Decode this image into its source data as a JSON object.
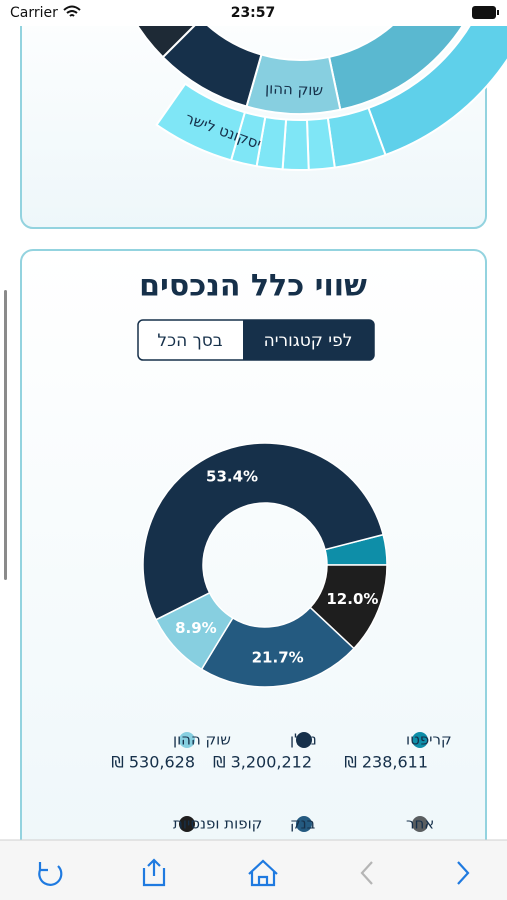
{
  "status_bar": {
    "carrier": "Carrier",
    "time": "23:57"
  },
  "top_card": {
    "labels": [
      "שוק ההון",
      "יסקונט לישר"
    ]
  },
  "assets_card": {
    "title": "שווי כלל הנכסים",
    "toggle": [
      "לפי קטגוריה",
      "בסך הכל"
    ],
    "legend": [
      {
        "name": "קריפטו",
        "color": "#0e8ea8",
        "value": "₪ 238,611"
      },
      {
        "name": "נדלן",
        "color": "#16304a",
        "value": "₪ 3,200,212"
      },
      {
        "name": "שוק ההון",
        "color": "#87cfe0",
        "value": "₪ 530,628"
      },
      {
        "name": "אחר",
        "color": "#5a5e60"
      },
      {
        "name": "בנק",
        "color": "#245a80"
      },
      {
        "name": "קופות ופנסיות",
        "color": "#1e1e1e"
      }
    ]
  },
  "chart_data": {
    "type": "pie",
    "categories": [
      "קריפטו",
      "קופות ופנסיות",
      "בנק",
      "שוק ההון",
      "נדלן"
    ],
    "values": [
      4.0,
      12.0,
      21.7,
      8.9,
      53.4
    ],
    "value_labels": [
      null,
      "12.0%",
      "21.7%",
      "8.9%",
      "53.4%"
    ],
    "colors": [
      "#0e8ea8",
      "#1e1e1e",
      "#245a80",
      "#87cfe0",
      "#16304a"
    ]
  }
}
